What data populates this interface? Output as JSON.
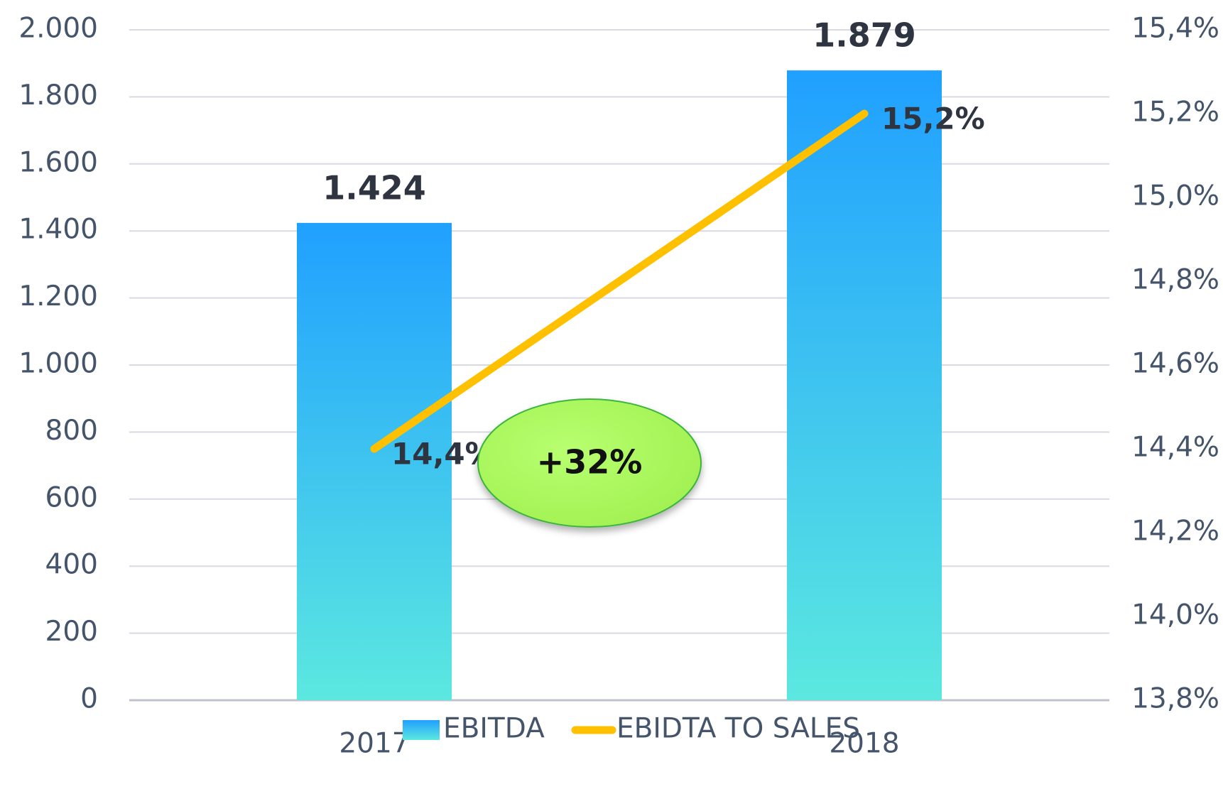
{
  "chart_data": {
    "type": "bar",
    "categories": [
      "2017",
      "2018"
    ],
    "series": [
      {
        "name": "EBITDA",
        "type": "bar",
        "color": "#20a0ff",
        "color_bottom": "#5ce8e0",
        "values": [
          1424,
          1879
        ],
        "value_labels": [
          "1.424",
          "1.879"
        ]
      },
      {
        "name": "EBIDTA TO SALES",
        "type": "line",
        "axis": "y2",
        "color": "#ffc000",
        "values": [
          14.4,
          15.2
        ],
        "value_labels": [
          "14,4%",
          "15,2%"
        ]
      }
    ],
    "ylim": [
      0,
      2000
    ],
    "yticks": [
      0,
      200,
      400,
      600,
      800,
      {
        "value": 1000,
        "label": "1.000"
      },
      {
        "value": 1200,
        "label": "1.200"
      },
      {
        "value": 1400,
        "label": "1.400"
      },
      {
        "value": 1600,
        "label": "1.600"
      },
      {
        "value": 1800,
        "label": "1.800"
      },
      {
        "value": 2000,
        "label": "2.000"
      }
    ],
    "y2lim": [
      13.8,
      15.4
    ],
    "y2ticks": [
      {
        "value": 13.8,
        "label": "13,8%"
      },
      {
        "value": 14.0,
        "label": "14,0%"
      },
      {
        "value": 14.2,
        "label": "14,2%"
      },
      {
        "value": 14.4,
        "label": "14,4%"
      },
      {
        "value": 14.6,
        "label": "14,6%"
      },
      {
        "value": 14.8,
        "label": "14,8%"
      },
      {
        "value": 15.0,
        "label": "15,0%"
      },
      {
        "value": 15.2,
        "label": "15,2%"
      },
      {
        "value": 15.4,
        "label": "15,4%"
      }
    ],
    "annotation": "+32%",
    "grid": true,
    "legend": "bottom"
  }
}
